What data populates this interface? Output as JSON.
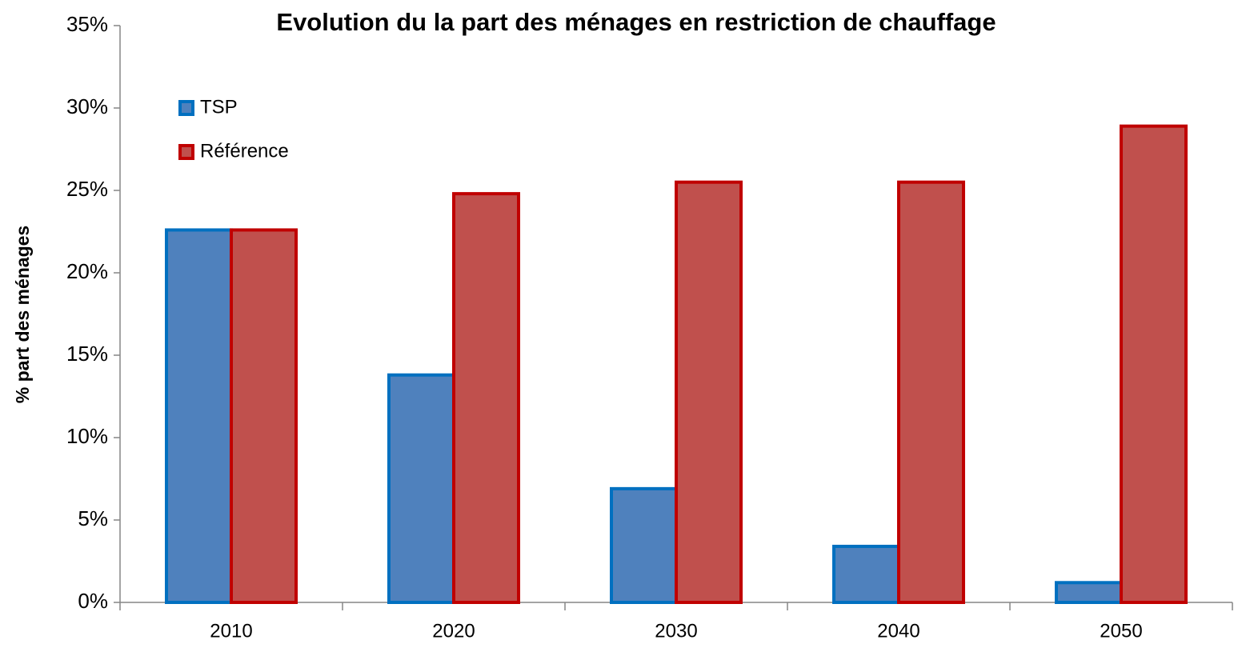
{
  "chart_data": {
    "type": "bar",
    "title": "Evolution du la part des ménages en restriction de chauffage",
    "y_label": "% part des ménages",
    "categories": [
      "2010",
      "2020",
      "2030",
      "2040",
      "2050"
    ],
    "series": [
      {
        "name": "TSP",
        "color": "#4f81bd",
        "edge_color": "#0070c0",
        "values": [
          22.6,
          13.8,
          6.9,
          3.4,
          1.2
        ]
      },
      {
        "name": "Référence",
        "color": "#c0504d",
        "edge_color": "#c00000",
        "values": [
          22.6,
          24.8,
          25.5,
          25.5,
          28.9
        ]
      }
    ],
    "ylim": [
      0,
      35
    ],
    "yticks": [
      {
        "value": 0,
        "label": "0%"
      },
      {
        "value": 5,
        "label": "5%"
      },
      {
        "value": 10,
        "label": "10%"
      },
      {
        "value": 15,
        "label": "15%"
      },
      {
        "value": 20,
        "label": "20%"
      },
      {
        "value": 25,
        "label": "25%"
      },
      {
        "value": 30,
        "label": "30%"
      },
      {
        "value": 35,
        "label": "35%"
      }
    ],
    "grid": false,
    "legend": "upper left"
  }
}
